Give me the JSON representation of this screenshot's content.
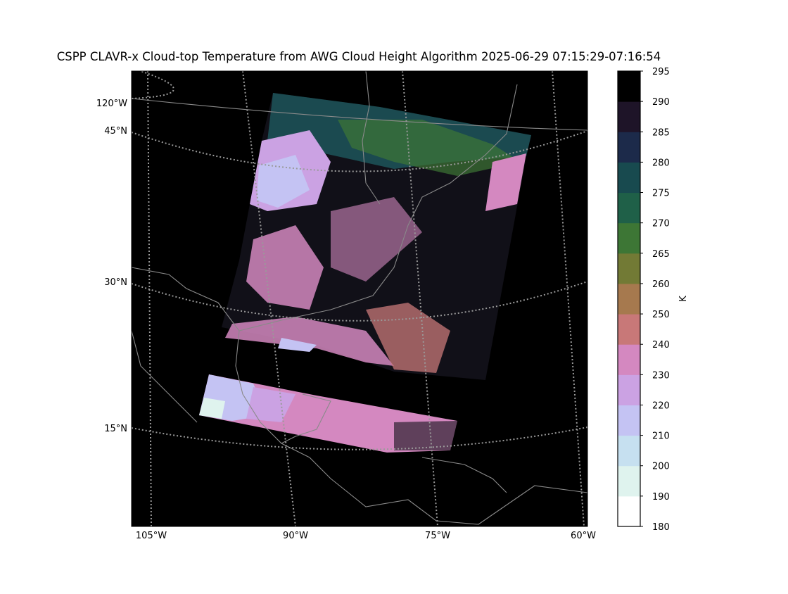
{
  "title": "CSPP CLAVR-x Cloud-top Temperature from AWG Cloud Height Algorithm 2025-06-29 07:15:29-07:16:54",
  "map": {
    "lat_labels": [
      "45°N",
      "30°N",
      "15°N"
    ],
    "lon_labels_left": [
      "120°W"
    ],
    "lon_labels_bottom": [
      "105°W",
      "90°W",
      "75°W",
      "60°W"
    ]
  },
  "colorbar": {
    "label": "K",
    "ticks": [
      180,
      190,
      200,
      210,
      220,
      230,
      240,
      250,
      260,
      265,
      270,
      275,
      280,
      285,
      290,
      295
    ],
    "colors": [
      "#ffffff",
      "#dff3ee",
      "#c6e0f0",
      "#c4c3f3",
      "#cba2e3",
      "#d488c0",
      "#c87878",
      "#a6794e",
      "#727a35",
      "#3d7635",
      "#1f6048",
      "#184a4f",
      "#1c2a4a",
      "#1e1428",
      "#000000"
    ]
  }
}
